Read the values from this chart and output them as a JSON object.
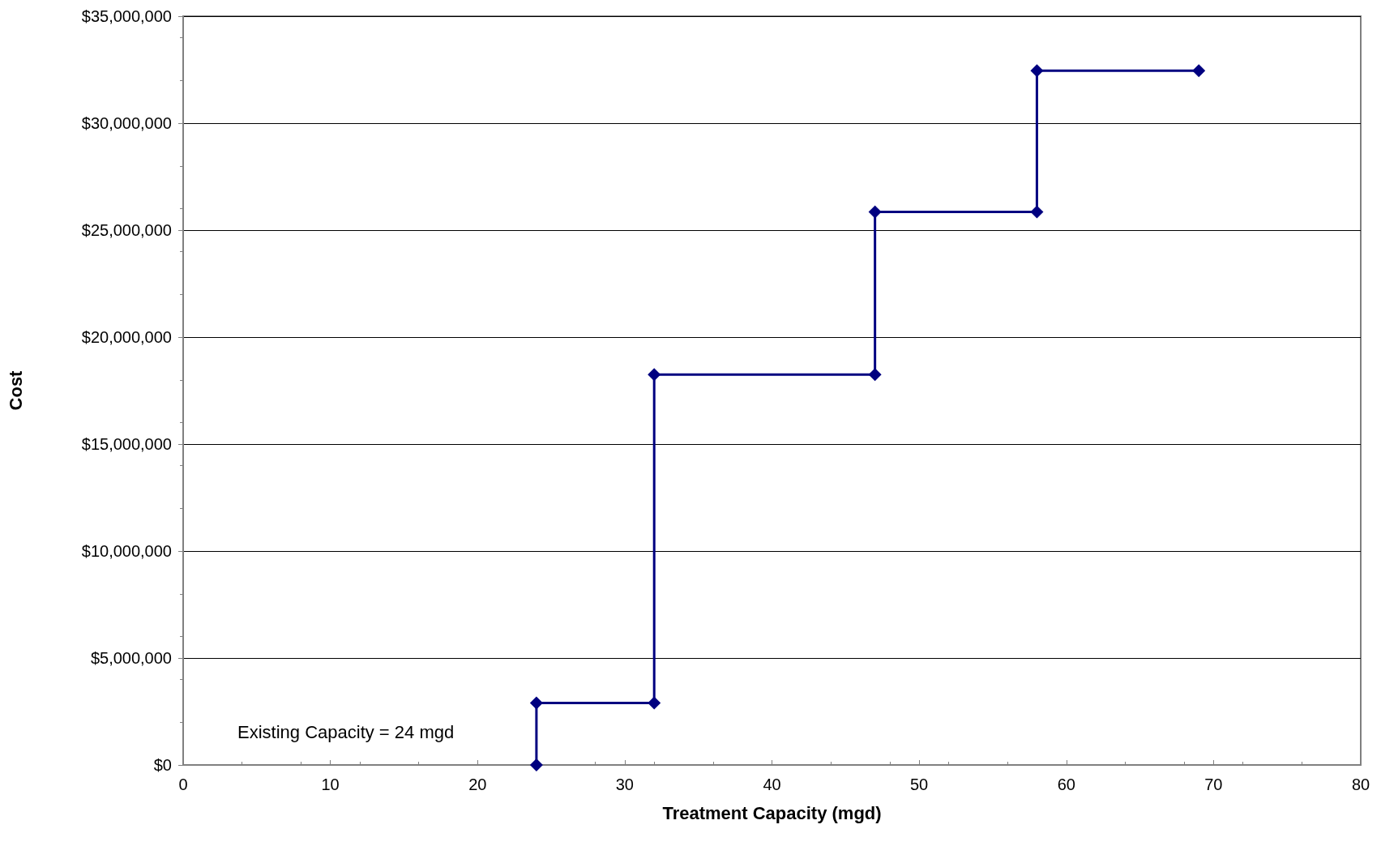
{
  "chart_data": {
    "type": "line",
    "xlabel": "Treatment Capacity (mgd)",
    "ylabel": "Cost",
    "annotations": [
      "Existing Capacity = 24 mgd"
    ],
    "series": [
      {
        "color": "#000080",
        "x": [
          24,
          24,
          32,
          32,
          47,
          47,
          58,
          58,
          69
        ],
        "values": [
          0,
          2900000,
          2900000,
          18250000,
          18250000,
          25850000,
          25850000,
          32450000,
          32450000
        ]
      }
    ],
    "xlim": [
      0,
      80
    ],
    "xticks": [
      0,
      10,
      20,
      30,
      40,
      50,
      60,
      70,
      80
    ],
    "ylim": [
      0,
      35000000
    ],
    "yticks": [
      {
        "value": 0,
        "label": "$0"
      },
      {
        "value": 5000000,
        "label": "$5,000,000"
      },
      {
        "value": 10000000,
        "label": "$10,000,000"
      },
      {
        "value": 15000000,
        "label": "$15,000,000"
      },
      {
        "value": 20000000,
        "label": "$20,000,000"
      },
      {
        "value": 25000000,
        "label": "$25,000,000"
      },
      {
        "value": 30000000,
        "label": "$30,000,000"
      },
      {
        "value": 35000000,
        "label": "$35,000,000"
      }
    ],
    "grid": "y",
    "marker": "diamond",
    "line_style": "solid"
  }
}
